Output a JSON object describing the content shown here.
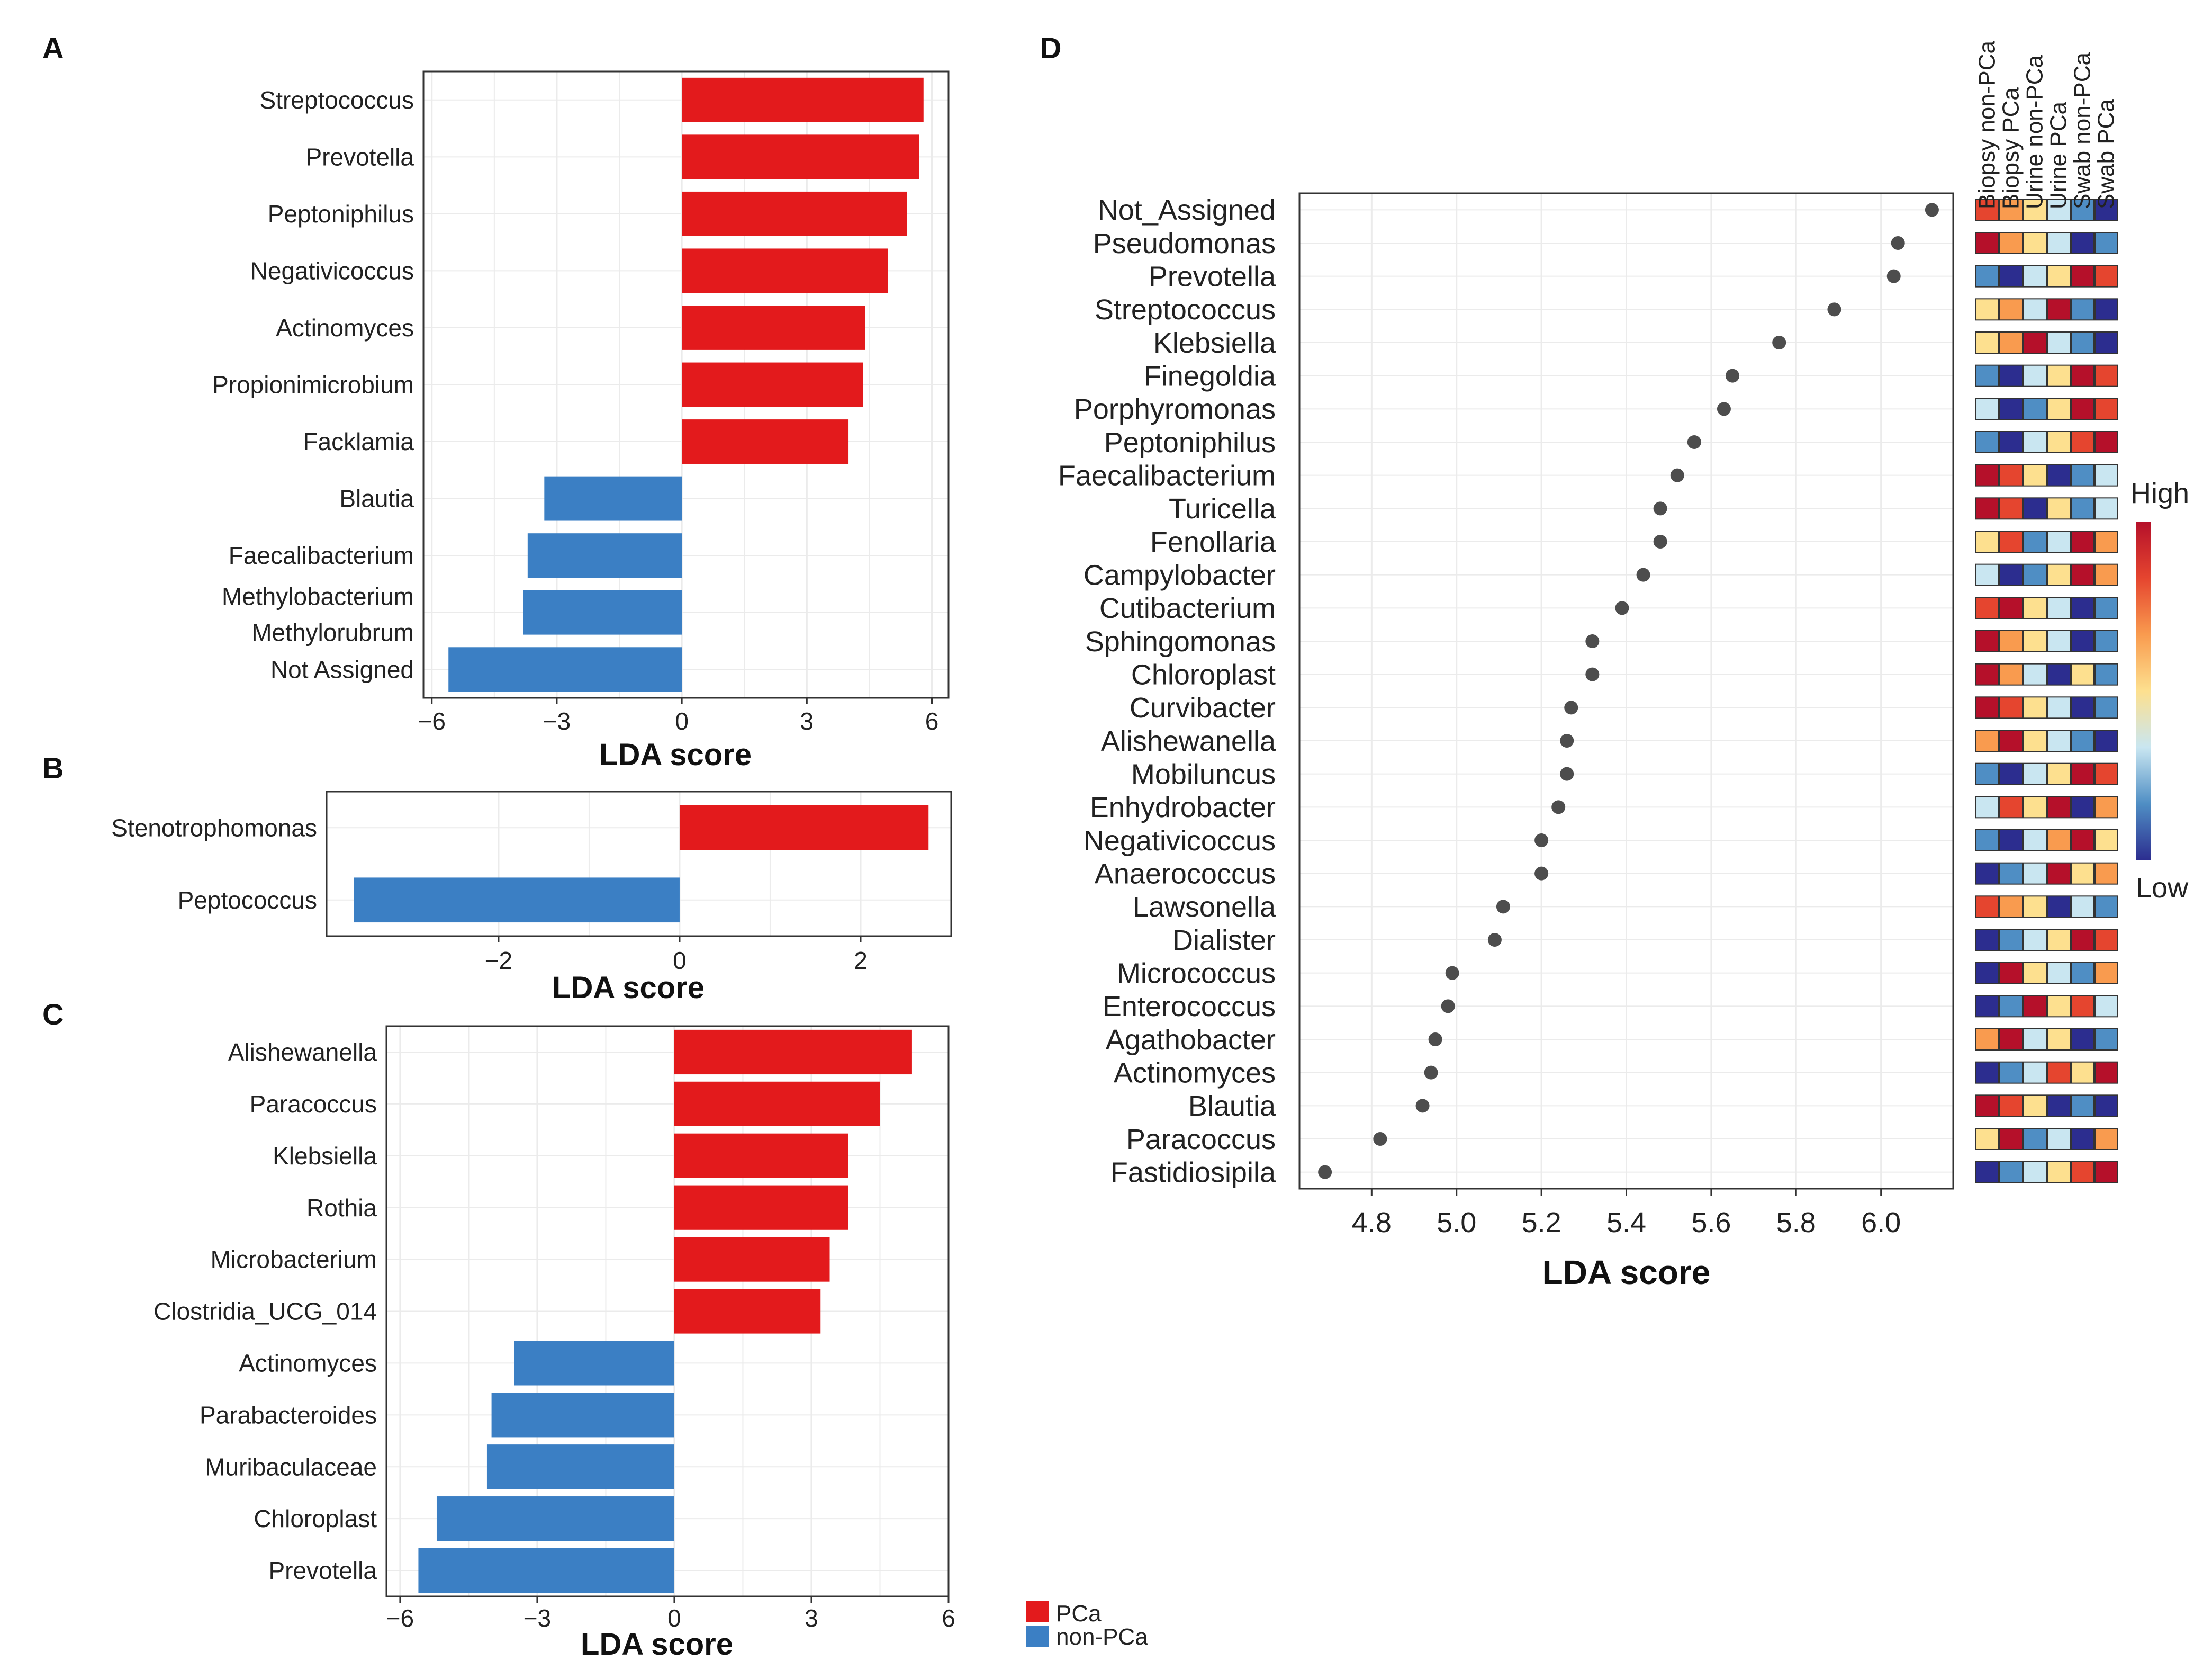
{
  "chart_data": [
    {
      "panel": "A",
      "type": "bar",
      "orientation": "horizontal",
      "categories": [
        "Streptococcus",
        "Prevotella",
        "Peptoniphilus",
        "Negativicoccus",
        "Actinomyces",
        "Propionimicrobium",
        "Facklamia",
        "Blautia",
        "Faecalibacterium",
        "Methylobacterium\nMethylorubrum",
        "Not Assigned"
      ],
      "values": [
        5.8,
        5.7,
        5.4,
        4.95,
        4.4,
        4.35,
        4.0,
        -3.3,
        -3.7,
        -3.8,
        -5.6
      ],
      "group": [
        "PCa",
        "PCa",
        "PCa",
        "PCa",
        "PCa",
        "PCa",
        "PCa",
        "non-PCa",
        "non-PCa",
        "non-PCa",
        "non-PCa"
      ],
      "xlabel": "LDA score",
      "xlim": [
        -6.2,
        6.4
      ],
      "xticks": [
        -6,
        -3,
        0,
        3,
        6
      ],
      "tick_labels": [
        "−6",
        "−3",
        "0",
        "3",
        "6"
      ]
    },
    {
      "panel": "B",
      "type": "bar",
      "orientation": "horizontal",
      "categories": [
        "Stenotrophomonas",
        "Peptococcus"
      ],
      "values": [
        2.75,
        -3.6
      ],
      "group": [
        "PCa",
        "non-PCa"
      ],
      "xlabel": "LDA score",
      "xlim": [
        -3.9,
        3.0
      ],
      "xticks": [
        -2,
        0,
        2
      ],
      "tick_labels": [
        "−2",
        "0",
        "2"
      ]
    },
    {
      "panel": "C",
      "type": "bar",
      "orientation": "horizontal",
      "categories": [
        "Alishewanella",
        "Paracoccus",
        "Klebsiella",
        "Rothia",
        "Microbacterium",
        "Clostridia_UCG_014",
        "Actinomyces",
        "Parabacteroides",
        "Muribaculaceae",
        "Chloroplast",
        "Prevotella"
      ],
      "values": [
        5.2,
        4.5,
        3.8,
        3.8,
        3.4,
        3.2,
        -3.5,
        -4.0,
        -4.1,
        -5.2,
        -5.6
      ],
      "group": [
        "PCa",
        "PCa",
        "PCa",
        "PCa",
        "PCa",
        "PCa",
        "non-PCa",
        "non-PCa",
        "non-PCa",
        "non-PCa",
        "non-PCa"
      ],
      "xlabel": "LDA score",
      "xlim": [
        -6.3,
        6.0
      ],
      "xticks": [
        -6,
        -3,
        0,
        3,
        6
      ],
      "tick_labels": [
        "−6",
        "−3",
        "0",
        "3",
        "6"
      ]
    },
    {
      "panel": "D",
      "type": "scatter",
      "categories": [
        "Not_Assigned",
        "Pseudomonas",
        "Prevotella",
        "Streptococcus",
        "Klebsiella",
        "Finegoldia",
        "Porphyromonas",
        "Peptoniphilus",
        "Faecalibacterium",
        "Turicella",
        "Fenollaria",
        "Campylobacter",
        "Cutibacterium",
        "Sphingomonas",
        "Chloroplast",
        "Curvibacter",
        "Alishewanella",
        "Mobiluncus",
        "Enhydrobacter",
        "Negativicoccus",
        "Anaerococcus",
        "Lawsonella",
        "Dialister",
        "Micrococcus",
        "Enterococcus",
        "Agathobacter",
        "Actinomyces",
        "Blautia",
        "Paracoccus",
        "Fastidiosipila"
      ],
      "values": [
        6.12,
        6.04,
        6.03,
        5.89,
        5.76,
        5.65,
        5.63,
        5.56,
        5.52,
        5.48,
        5.48,
        5.44,
        5.39,
        5.32,
        5.32,
        5.27,
        5.26,
        5.26,
        5.24,
        5.2,
        5.2,
        5.11,
        5.09,
        4.99,
        4.98,
        4.95,
        4.94,
        4.92,
        4.82,
        4.69
      ],
      "xlabel": "LDA score",
      "xlim": [
        4.63,
        6.17
      ],
      "xticks": [
        4.8,
        5.0,
        5.2,
        5.4,
        5.6,
        5.8,
        6.0
      ],
      "tick_labels": [
        "4.8",
        "5.0",
        "5.2",
        "5.4",
        "5.6",
        "5.8",
        "6.0"
      ],
      "heatmap_columns": [
        "Biopsy non-PCa",
        "Biopsy PCa",
        "Urine non-PCa",
        "Urine PCa",
        "Swab non-PCa",
        "Swab PCa"
      ],
      "heatmap_levels": [
        [
          5,
          4,
          3,
          2,
          1,
          0
        ],
        [
          6,
          4,
          3,
          2,
          0,
          1
        ],
        [
          1,
          0,
          2,
          3,
          6,
          5
        ],
        [
          3,
          4,
          2,
          6,
          1,
          0
        ],
        [
          3,
          4,
          6,
          2,
          1,
          0
        ],
        [
          1,
          0,
          2,
          3,
          6,
          5
        ],
        [
          2,
          0,
          1,
          3,
          6,
          5
        ],
        [
          1,
          0,
          2,
          3,
          5,
          6
        ],
        [
          6,
          5,
          3,
          0,
          1,
          2
        ],
        [
          6,
          5,
          0,
          3,
          1,
          2
        ],
        [
          3,
          5,
          1,
          2,
          6,
          4
        ],
        [
          2,
          0,
          1,
          3,
          6,
          4
        ],
        [
          5,
          6,
          3,
          2,
          0,
          1
        ],
        [
          6,
          4,
          3,
          2,
          0,
          1
        ],
        [
          6,
          4,
          2,
          0,
          3,
          1
        ],
        [
          6,
          5,
          3,
          2,
          0,
          1
        ],
        [
          4,
          6,
          3,
          2,
          1,
          0
        ],
        [
          1,
          0,
          2,
          3,
          6,
          5
        ],
        [
          2,
          5,
          3,
          6,
          0,
          4
        ],
        [
          1,
          0,
          2,
          4,
          6,
          3
        ],
        [
          0,
          1,
          2,
          6,
          3,
          4
        ],
        [
          5,
          4,
          3,
          0,
          2,
          1
        ],
        [
          0,
          1,
          2,
          3,
          6,
          5
        ],
        [
          0,
          6,
          3,
          2,
          1,
          4
        ],
        [
          0,
          1,
          6,
          3,
          5,
          2
        ],
        [
          4,
          6,
          2,
          3,
          0,
          1
        ],
        [
          0,
          1,
          2,
          5,
          3,
          6
        ],
        [
          6,
          5,
          3,
          0,
          1,
          0
        ],
        [
          3,
          6,
          1,
          2,
          0,
          4
        ],
        [
          0,
          1,
          2,
          3,
          5,
          6
        ]
      ],
      "color_scale": {
        "high_label": "High",
        "low_label": "Low"
      }
    }
  ],
  "panel_letters": {
    "A": "A",
    "B": "B",
    "C": "C",
    "D": "D"
  },
  "legend": {
    "pca": "PCa",
    "non_pca": "non-PCa"
  },
  "colors": {
    "pca": "#e31a1c",
    "non_pca": "#3b7fc4",
    "grid": "#ebebeb",
    "panel_border": "#333333",
    "dot": "#4d4d4d",
    "heat_scale": [
      "#2c2d8f",
      "#4f8ec4",
      "#c9e6f1",
      "#fde08f",
      "#f99b4f",
      "#e5452f",
      "#b5102a"
    ]
  }
}
